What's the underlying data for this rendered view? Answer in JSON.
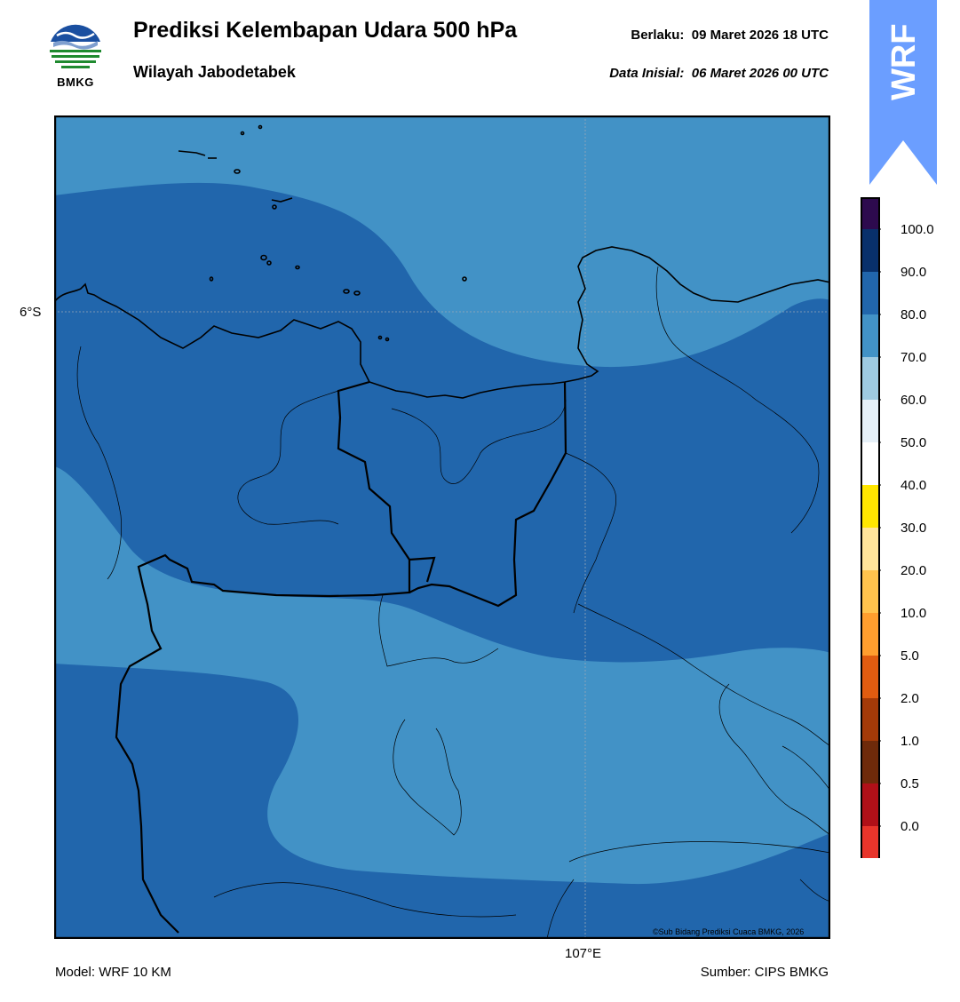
{
  "header": {
    "title": "Prediksi Kelembapan Udara 500 hPa",
    "subtitle": "Wilayah Jabodetabek",
    "valid_label": "Berlaku:",
    "valid_value": "09 Maret 2026 18 UTC",
    "init_label": "Data Inisial:",
    "init_value": "06 Maret 2026 00 UTC"
  },
  "logo": {
    "text": "BMKG",
    "icon": "bmkg-logo-icon",
    "colors": [
      "#1a4fa0",
      "#1f8a2f"
    ]
  },
  "badge": {
    "text": "WRF",
    "color": "#6b9eff"
  },
  "map": {
    "lat_label": "6°S",
    "lon_label": "107°E",
    "credit": "©Sub Bidang Prediksi Cuaca BMKG, 2026",
    "fill_colors": {
      "band_70_80": "#4292c6",
      "band_80_90": "#2166ac"
    }
  },
  "colorbar": {
    "levels": [
      "100.0",
      "90.0",
      "80.0",
      "70.0",
      "60.0",
      "50.0",
      "40.0",
      "30.0",
      "20.0",
      "10.0",
      "5.0",
      "2.0",
      "1.0",
      "0.5",
      "0.0"
    ],
    "colors_top_to_bottom": [
      "#2d0a4e",
      "#08306b",
      "#2166ac",
      "#4292c6",
      "#9ecae1",
      "#e6f0f8",
      "#ffffff",
      "#ffe600",
      "#ffe49a",
      "#ffc34d",
      "#ff9e2e",
      "#e05c10",
      "#a33a08",
      "#6e2a0a",
      "#b01018",
      "#e8352b"
    ]
  },
  "footer": {
    "model": "Model: WRF 10 KM",
    "source": "Sumber: CIPS BMKG"
  }
}
